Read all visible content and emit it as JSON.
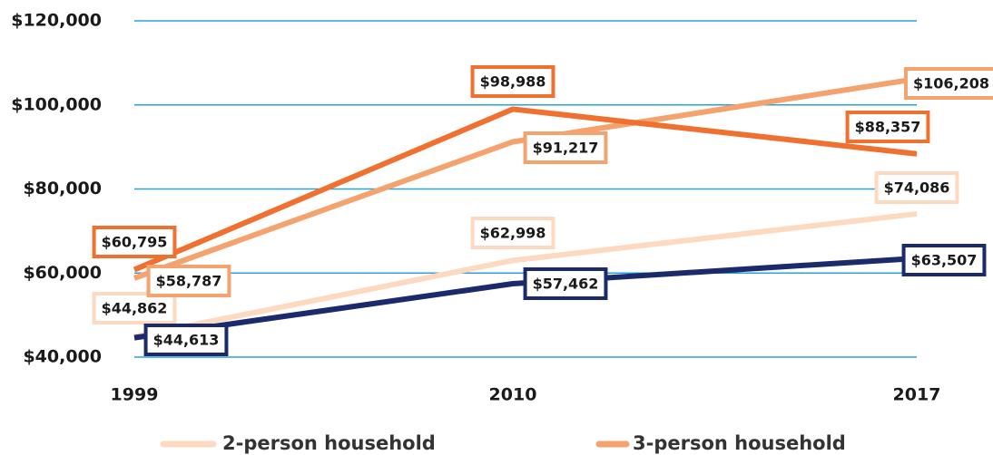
{
  "chart_data": {
    "type": "line",
    "categories": [
      "1999",
      "2010",
      "2017"
    ],
    "series": [
      {
        "name": "2-person household",
        "color": "#fdd9bf",
        "values": [
          44862,
          62998,
          74086
        ],
        "value_labels": [
          "$44,862",
          "$62,998",
          "$74,086"
        ]
      },
      {
        "name": "3-person household",
        "color": "#f4a26e",
        "values": [
          58787,
          91217,
          106208
        ],
        "value_labels": [
          "$58,787",
          "$91,217",
          "$106,208"
        ]
      },
      {
        "color": "#f07030",
        "values": [
          60795,
          98988,
          88357
        ],
        "value_labels": [
          "$60,795",
          "$98,988",
          "$88,357"
        ]
      },
      {
        "color": "#1b2a6b",
        "values": [
          44613,
          57462,
          63507
        ],
        "value_labels": [
          "$44,613",
          "$57,462",
          "$63,507"
        ]
      }
    ],
    "ylim": [
      40000,
      120000
    ],
    "yticks": [
      {
        "value": 40000,
        "label": "$40,000"
      },
      {
        "value": 60000,
        "label": "$60,000"
      },
      {
        "value": 80000,
        "label": "$80,000"
      },
      {
        "value": 100000,
        "label": "$100,000"
      },
      {
        "value": 120000,
        "label": "$120,000"
      }
    ],
    "grid": true,
    "grid_color": "#29a3d8"
  }
}
